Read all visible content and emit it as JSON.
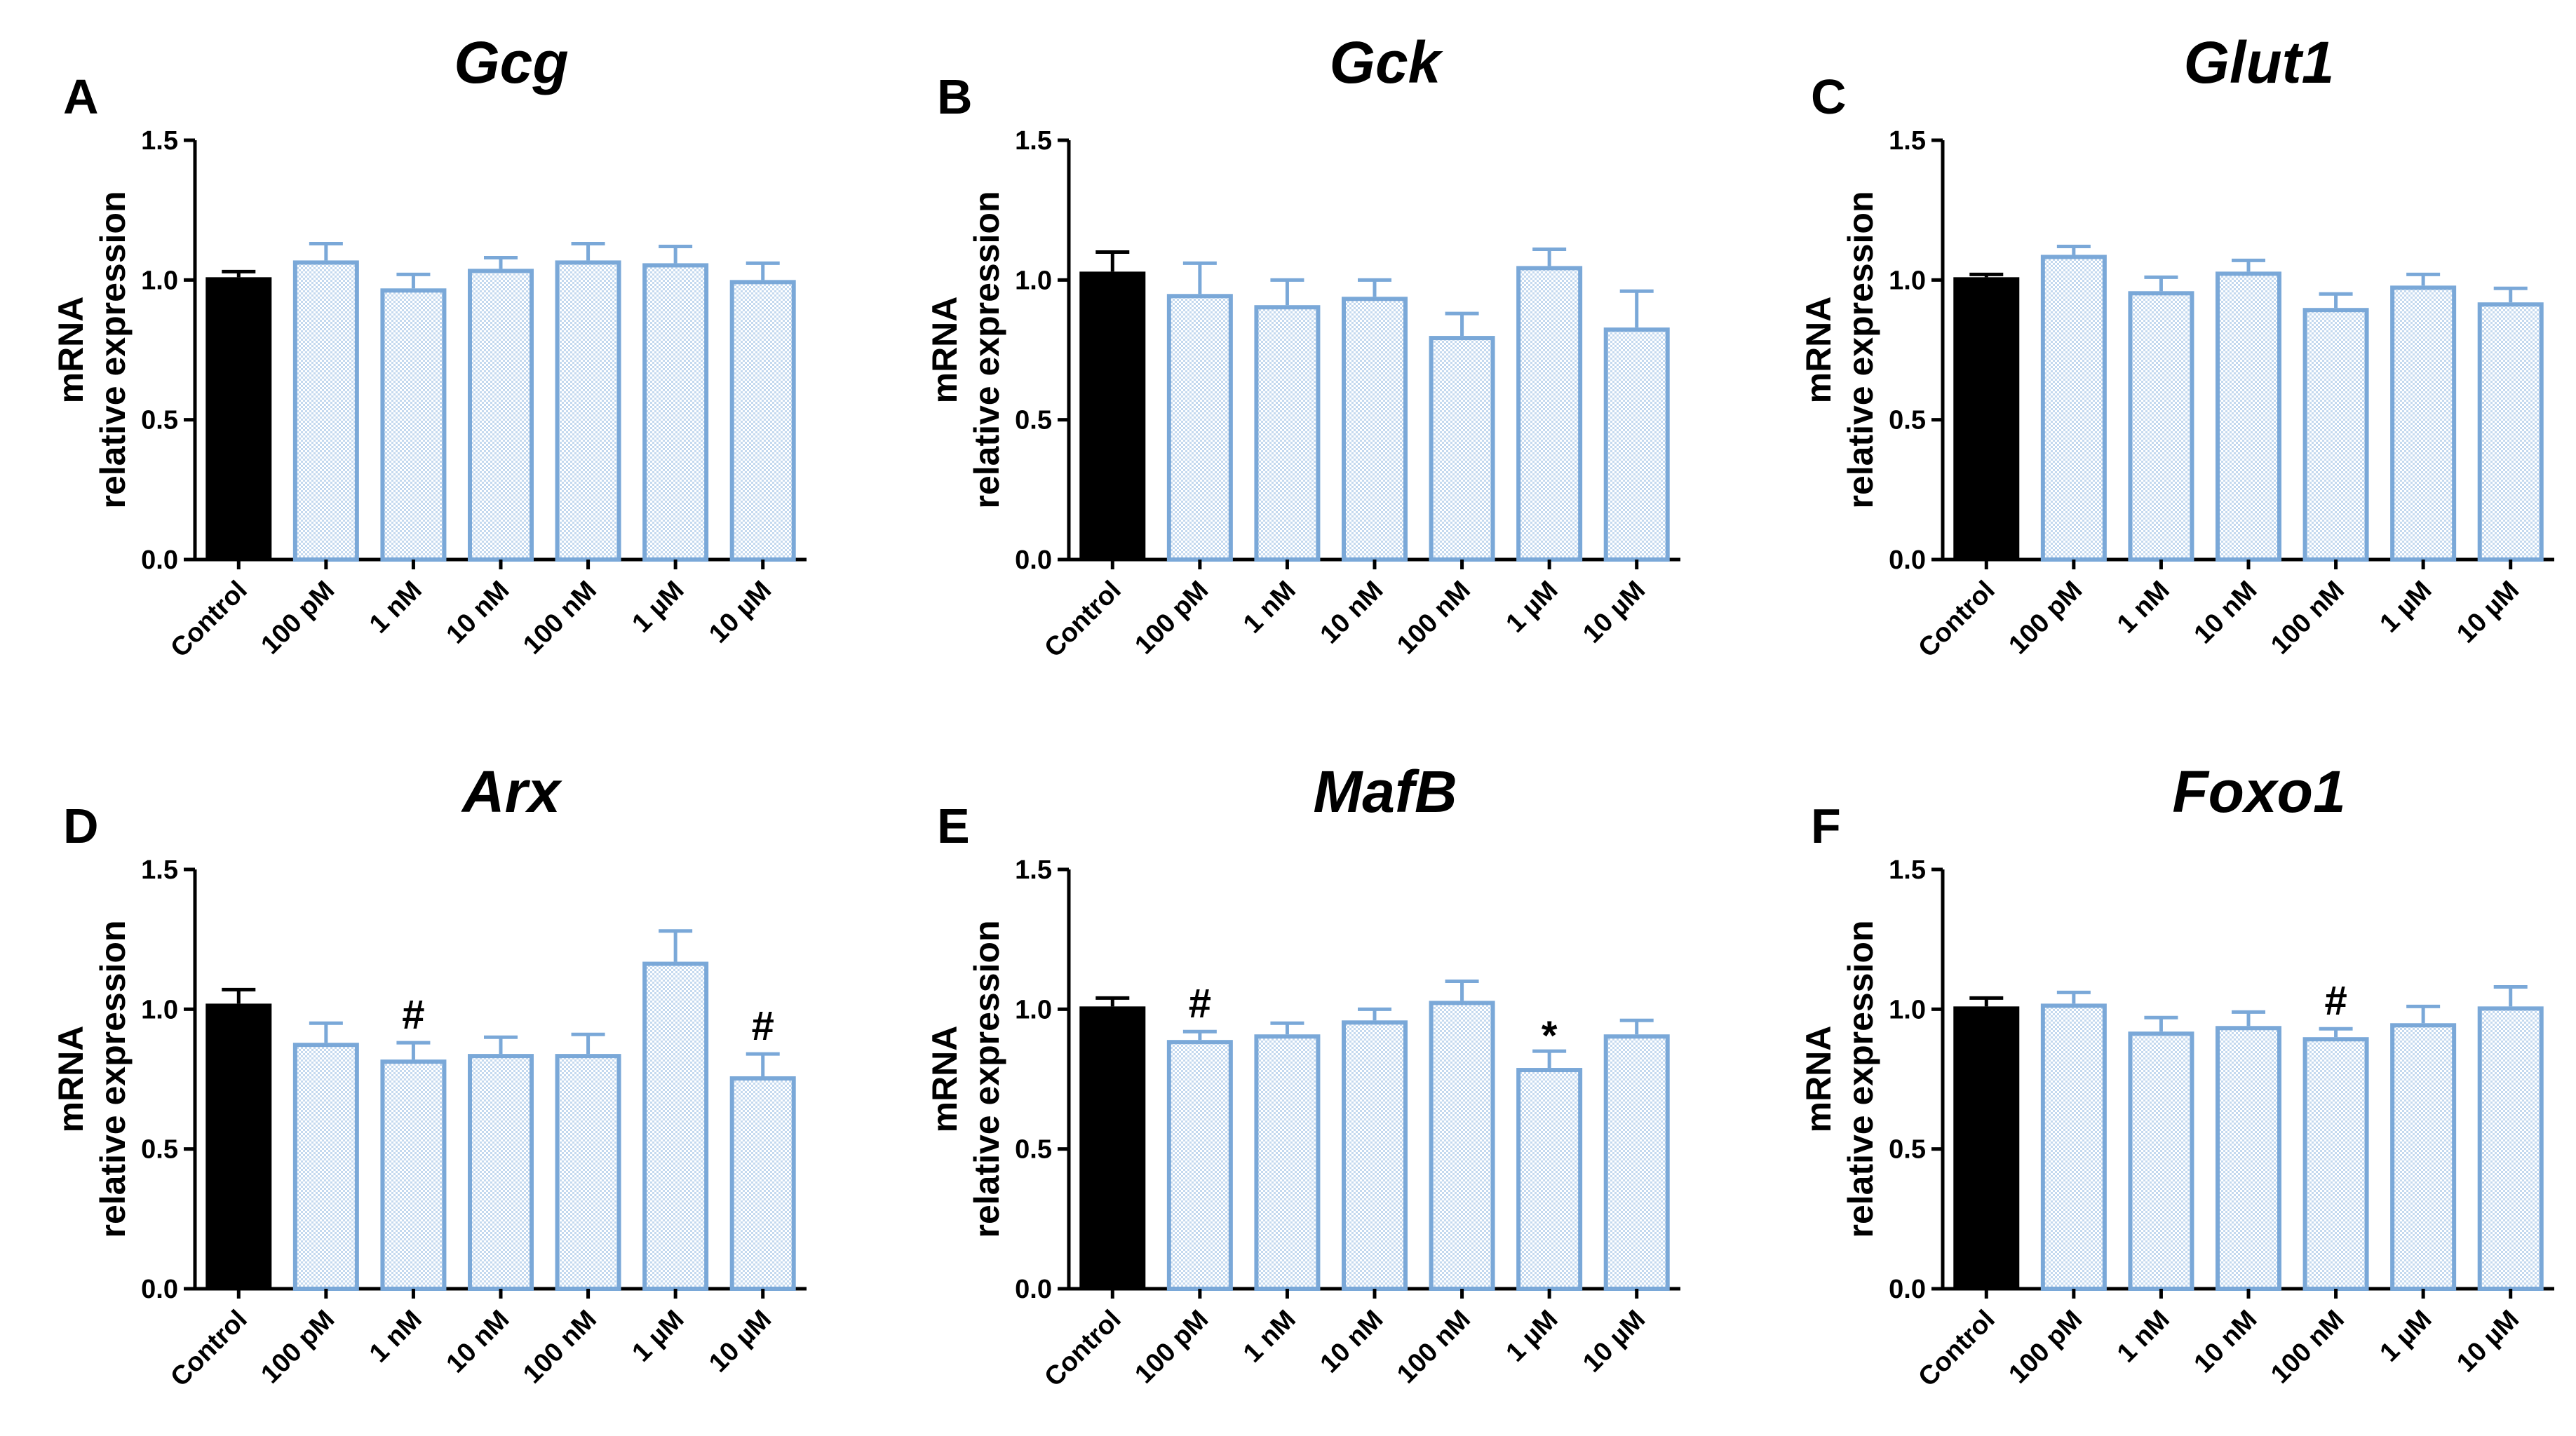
{
  "chart_data": [
    {
      "type": "bar",
      "panel": "A",
      "title": "Gcg",
      "ylabel_line1": "mRNA",
      "ylabel_line2": "relative expression",
      "ylim": [
        0,
        1.5
      ],
      "yticks": [
        "0.0",
        "0.5",
        "1.0",
        "1.5"
      ],
      "categories": [
        "Control",
        "100 pM",
        "1 nM",
        "10 nM",
        "100 nM",
        "1 µM",
        "10 µM"
      ],
      "values": [
        1.01,
        1.07,
        0.97,
        1.04,
        1.07,
        1.06,
        1.0
      ],
      "errors": [
        0.02,
        0.06,
        0.05,
        0.04,
        0.06,
        0.06,
        0.06
      ],
      "significance": [
        "",
        "",
        "",
        "",
        "",
        "",
        ""
      ]
    },
    {
      "type": "bar",
      "panel": "B",
      "title": "Gck",
      "ylabel_line1": "mRNA",
      "ylabel_line2": "relative expression",
      "ylim": [
        0,
        1.5
      ],
      "yticks": [
        "0.0",
        "0.5",
        "1.0",
        "1.5"
      ],
      "categories": [
        "Control",
        "100 pM",
        "1 nM",
        "10 nM",
        "100 nM",
        "1 µM",
        "10 µM"
      ],
      "values": [
        1.03,
        0.95,
        0.91,
        0.94,
        0.8,
        1.05,
        0.83
      ],
      "errors": [
        0.07,
        0.11,
        0.09,
        0.06,
        0.08,
        0.06,
        0.13
      ],
      "significance": [
        "",
        "",
        "",
        "",
        "",
        "",
        ""
      ]
    },
    {
      "type": "bar",
      "panel": "C",
      "title": "Glut1",
      "ylabel_line1": "mRNA",
      "ylabel_line2": "relative expression",
      "ylim": [
        0,
        1.5
      ],
      "yticks": [
        "0.0",
        "0.5",
        "1.0",
        "1.5"
      ],
      "categories": [
        "Control",
        "100 pM",
        "1 nM",
        "10 nM",
        "100 nM",
        "1 µM",
        "10 µM"
      ],
      "values": [
        1.01,
        1.09,
        0.96,
        1.03,
        0.9,
        0.98,
        0.92
      ],
      "errors": [
        0.01,
        0.03,
        0.05,
        0.04,
        0.05,
        0.04,
        0.05
      ],
      "significance": [
        "",
        "",
        "",
        "",
        "",
        "",
        ""
      ]
    },
    {
      "type": "bar",
      "panel": "D",
      "title": "Arx",
      "ylabel_line1": "mRNA",
      "ylabel_line2": "relative expression",
      "ylim": [
        0,
        1.5
      ],
      "yticks": [
        "0.0",
        "0.5",
        "1.0",
        "1.5"
      ],
      "categories": [
        "Control",
        "100 pM",
        "1 nM",
        "10 nM",
        "100 nM",
        "1 µM",
        "10 µM"
      ],
      "values": [
        1.02,
        0.88,
        0.82,
        0.84,
        0.84,
        1.17,
        0.76
      ],
      "errors": [
        0.05,
        0.07,
        0.06,
        0.06,
        0.07,
        0.11,
        0.08
      ],
      "significance": [
        "",
        "",
        "#",
        "",
        "",
        "",
        "#"
      ]
    },
    {
      "type": "bar",
      "panel": "E",
      "title": "MafB",
      "ylabel_line1": "mRNA",
      "ylabel_line2": "relative expression",
      "ylim": [
        0,
        1.5
      ],
      "yticks": [
        "0.0",
        "0.5",
        "1.0",
        "1.5"
      ],
      "categories": [
        "Control",
        "100 pM",
        "1 nM",
        "10 nM",
        "100 nM",
        "1 µM",
        "10 µM"
      ],
      "values": [
        1.01,
        0.89,
        0.91,
        0.96,
        1.03,
        0.79,
        0.91
      ],
      "errors": [
        0.03,
        0.03,
        0.04,
        0.04,
        0.07,
        0.06,
        0.05
      ],
      "significance": [
        "",
        "#",
        "",
        "",
        "",
        "*",
        ""
      ]
    },
    {
      "type": "bar",
      "panel": "F",
      "title": "Foxo1",
      "ylabel_line1": "mRNA",
      "ylabel_line2": "relative expression",
      "ylim": [
        0,
        1.5
      ],
      "yticks": [
        "0.0",
        "0.5",
        "1.0",
        "1.5"
      ],
      "categories": [
        "Control",
        "100 pM",
        "1 nM",
        "10 nM",
        "100 nM",
        "1 µM",
        "10 µM"
      ],
      "values": [
        1.01,
        1.02,
        0.92,
        0.94,
        0.9,
        0.95,
        1.01
      ],
      "errors": [
        0.03,
        0.04,
        0.05,
        0.05,
        0.03,
        0.06,
        0.07
      ],
      "significance": [
        "",
        "",
        "",
        "",
        "#",
        "",
        ""
      ]
    }
  ],
  "colors": {
    "control_fill": "#000000",
    "treatment_stroke": "#7aa8d8",
    "treatment_fill_a": "#d6e6f6",
    "treatment_fill_b": "#ffffff",
    "axis": "#000000"
  }
}
